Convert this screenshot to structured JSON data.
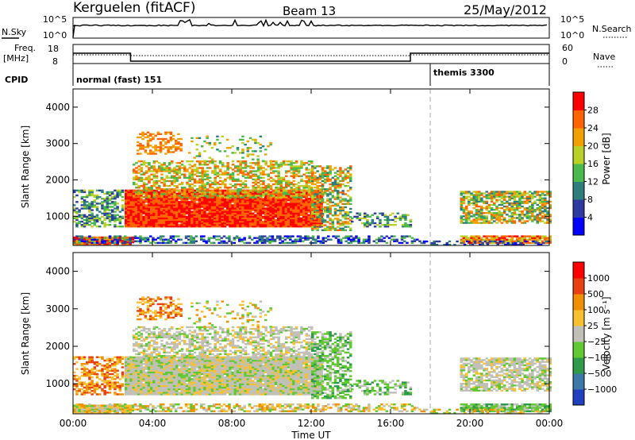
{
  "header": {
    "station": "Kerguelen (fitACF)",
    "beam": "Beam 13",
    "date": "25/May/2012"
  },
  "nsky_panel": {
    "left_label": "N.Sky",
    "right_label": "N.Search",
    "left_ticks": [
      "10^5",
      "10^0"
    ],
    "right_ticks": [
      "10^5",
      "10^0"
    ]
  },
  "freq_panel": {
    "left_label_1": "Freq.",
    "left_label_2": "[MHz]",
    "right_label": "Nave",
    "left_ticks": [
      "18",
      "8"
    ],
    "right_ticks": [
      "60",
      "0"
    ]
  },
  "cpid_panel": {
    "label": "CPID",
    "modes": [
      {
        "name": "normal (fast) 151",
        "start_hour": 0
      },
      {
        "name": "themis 3300",
        "start_hour": 18
      }
    ]
  },
  "chart_data": [
    {
      "type": "heatmap",
      "name": "power",
      "ylabel": "Slant Range [km]",
      "yticks": [
        "4000",
        "3000",
        "2000",
        "1000"
      ],
      "ylim": [
        200,
        4500
      ],
      "colorbar_label": "Power [dB]",
      "colorbar_ticks": [
        "28",
        "24",
        "20",
        "16",
        "12",
        "8",
        "4"
      ],
      "colors": [
        "#0000ff",
        "#2e3aa0",
        "#2e7e7e",
        "#4ab84a",
        "#b8d028",
        "#f0a000",
        "#ff6400",
        "#ff0000"
      ]
    },
    {
      "type": "heatmap",
      "name": "velocity",
      "ylabel": "Slant Range [km]",
      "yticks": [
        "4000",
        "3000",
        "2000",
        "1000"
      ],
      "ylim": [
        200,
        4500
      ],
      "colorbar_label": "Velocity [m s⁻¹]",
      "colorbar_ticks": [
        "1000",
        "500",
        "100",
        "25",
        "−25",
        "−100",
        "−500",
        "−1000"
      ],
      "colors": [
        "#2040c0",
        "#3c78a8",
        "#2e9a4a",
        "#60c830",
        "#c0c0b8",
        "#f8c030",
        "#f09000",
        "#e84010",
        "#ff0000"
      ]
    }
  ],
  "x_axis": {
    "label": "Time UT",
    "ticks": [
      "00:00",
      "04:00",
      "08:00",
      "12:00",
      "16:00",
      "20:00",
      "00:00"
    ]
  }
}
